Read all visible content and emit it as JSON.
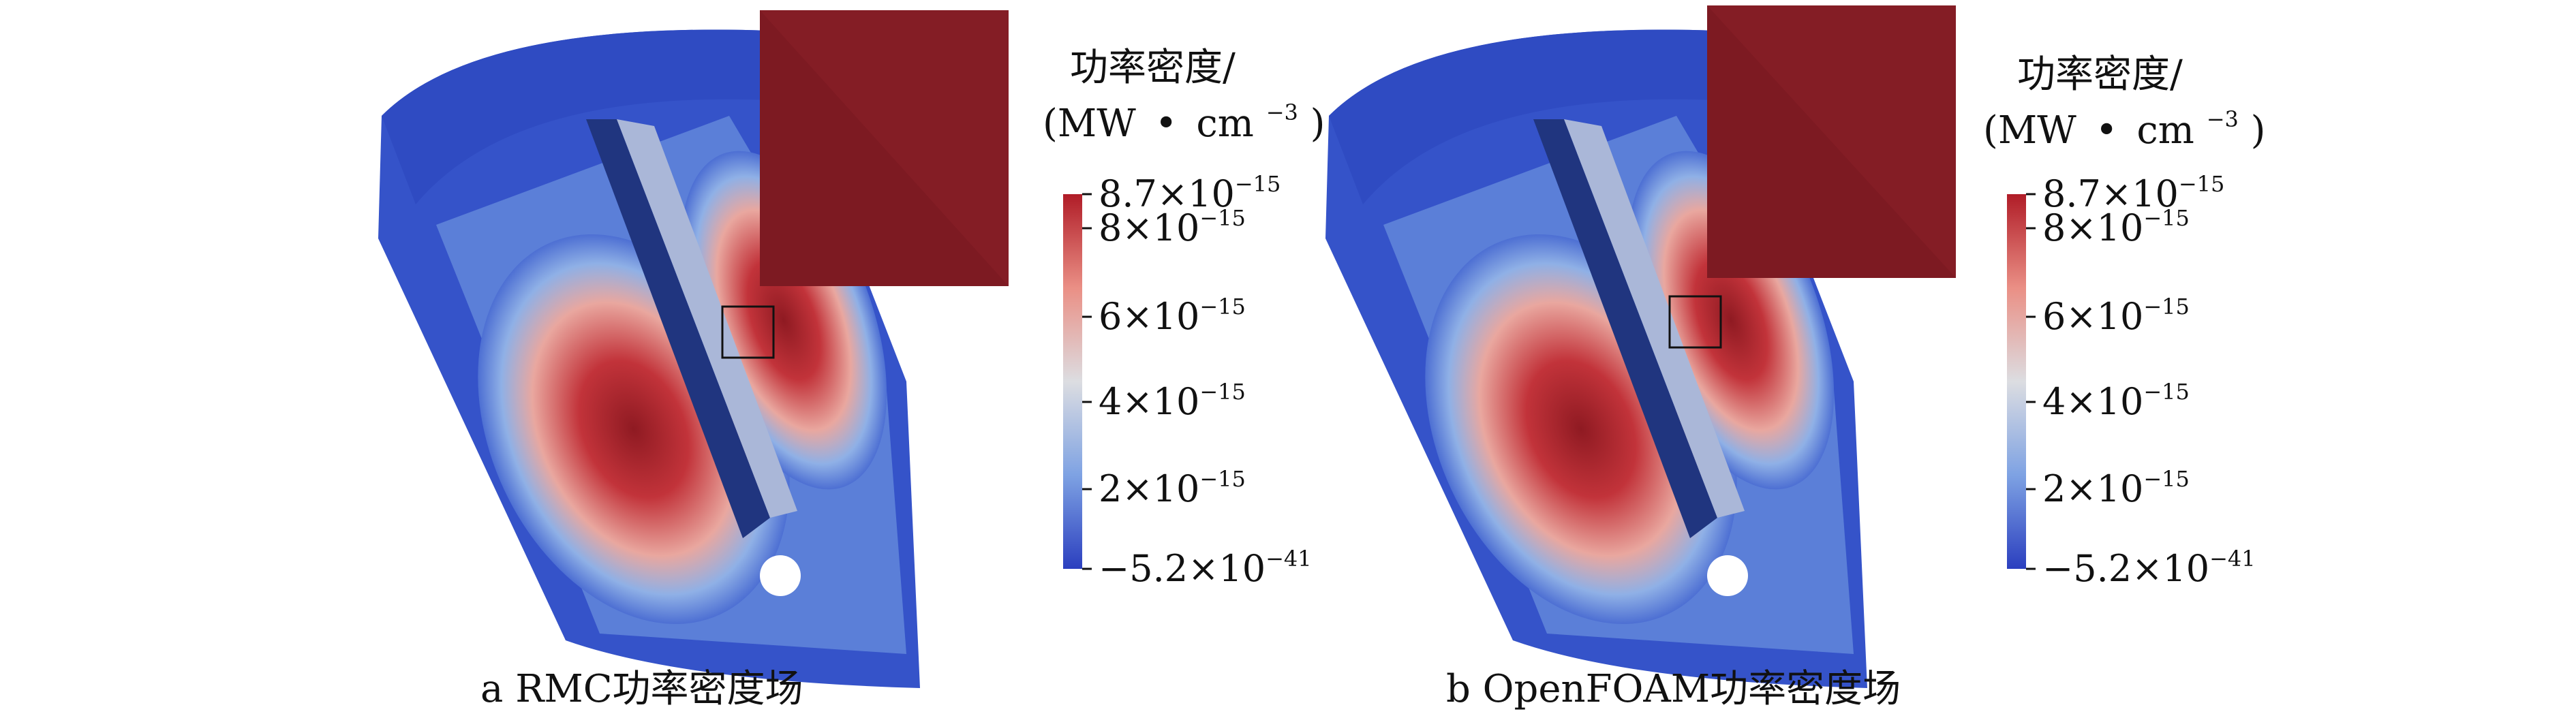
{
  "panels": [
    {
      "caption": "a  RMC功率密度场",
      "colorbar": {
        "title_line1": "功率密度/",
        "title_line2_pre": "(MW",
        "title_line2_dot": "•",
        "title_line2_unit": "cm",
        "title_line2_exp": "−3",
        "title_line2_post": ")",
        "ticks": [
          {
            "mant": "8.7×10",
            "exp": "−15"
          },
          {
            "mant": "8×10",
            "exp": "−15"
          },
          {
            "mant": "6×10",
            "exp": "−15"
          },
          {
            "mant": "4×10",
            "exp": "−15"
          },
          {
            "mant": "2×10",
            "exp": "−15"
          },
          {
            "mant": "−5.2×10",
            "exp": "−41"
          }
        ]
      }
    },
    {
      "caption": "b  OpenFOAM功率密度场",
      "colorbar": {
        "title_line1": "功率密度/",
        "title_line2_pre": "(MW",
        "title_line2_dot": "•",
        "title_line2_unit": "cm",
        "title_line2_exp": "−3",
        "title_line2_post": ")",
        "ticks": [
          {
            "mant": "8.7×10",
            "exp": "−15"
          },
          {
            "mant": "8×10",
            "exp": "−15"
          },
          {
            "mant": "6×10",
            "exp": "−15"
          },
          {
            "mant": "4×10",
            "exp": "−15"
          },
          {
            "mant": "2×10",
            "exp": "−15"
          },
          {
            "mant": "−5.2×10",
            "exp": "−41"
          }
        ]
      }
    }
  ],
  "colors": {
    "cold": "#2f4fc7",
    "mid": "#d7d7dc",
    "hot": "#b3202a",
    "inset": "#7d1a22"
  }
}
